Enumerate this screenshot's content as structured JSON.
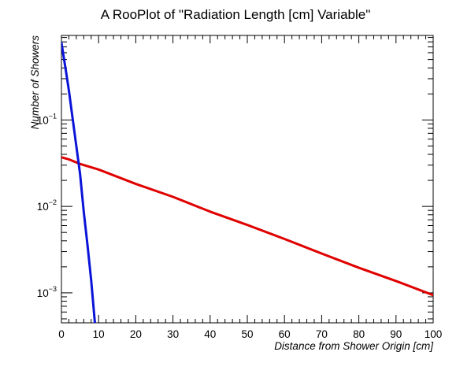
{
  "chart_data": {
    "type": "line",
    "title": "A RooPlot of \"Radiation Length [cm] Variable\"",
    "xlabel": "Distance from Shower Origin [cm]",
    "ylabel": "Number of Showers",
    "xlim": [
      0,
      100
    ],
    "ylim": [
      0.00045,
      0.95
    ],
    "yscale": "log",
    "grid": false,
    "x_ticks": [
      0,
      10,
      20,
      30,
      40,
      50,
      60,
      70,
      80,
      90,
      100
    ],
    "x_tick_labels": [
      "0",
      "10",
      "20",
      "30",
      "40",
      "50",
      "60",
      "70",
      "80",
      "90",
      "100"
    ],
    "y_ticks": [
      {
        "value": 0.1,
        "base": "10",
        "exp": "−1"
      },
      {
        "value": 0.01,
        "base": "10",
        "exp": "−2"
      },
      {
        "value": 0.001,
        "base": "10",
        "exp": "−3"
      }
    ],
    "series": [
      {
        "color": "#e00000",
        "x": [
          0,
          2,
          5,
          10,
          20,
          30,
          40,
          50,
          60,
          70,
          80,
          90,
          100
        ],
        "y": [
          0.037,
          0.035,
          0.031,
          0.0267,
          0.0182,
          0.0129,
          0.0087,
          0.0061,
          0.0042,
          0.00285,
          0.00195,
          0.00137,
          0.00094
        ]
      },
      {
        "color": "#0a14d8",
        "x": [
          0,
          1,
          2,
          3,
          4,
          5,
          6,
          7,
          8,
          9
        ],
        "y": [
          0.78,
          0.42,
          0.22,
          0.105,
          0.05,
          0.024,
          0.0087,
          0.0036,
          0.0014,
          0.00045
        ]
      }
    ]
  }
}
